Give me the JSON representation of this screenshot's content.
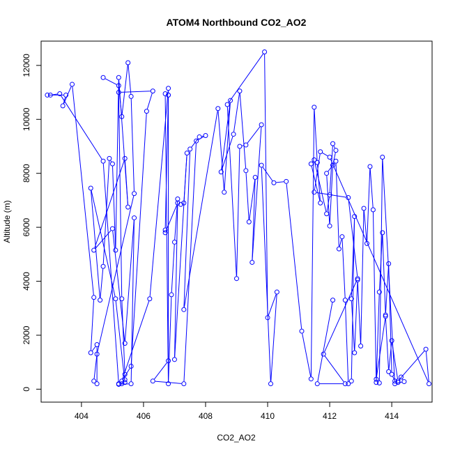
{
  "chart_data": {
    "type": "line",
    "title": "ATOM4 Northbound CO2_AO2",
    "xlabel": "CO2_AO2",
    "ylabel": "Altitude (m)",
    "xlim": [
      402.7,
      415.3
    ],
    "ylim": [
      -480,
      12900
    ],
    "x_ticks": [
      404,
      406,
      408,
      410,
      412,
      414
    ],
    "y_ticks": [
      0,
      2000,
      4000,
      6000,
      8000,
      10000,
      12000
    ],
    "grid": false,
    "legend": "none",
    "series_color": "#0000ff",
    "marker": "open-circle",
    "x": [
      404.7,
      405.2,
      405.3,
      405.5,
      405.6,
      405.7,
      404.5,
      404.4,
      404.5,
      404.5,
      404.3,
      404.4,
      403.7,
      403.4,
      403.5,
      402.9,
      403.0,
      403.3,
      404.7,
      405.2,
      405.4,
      405.1,
      404.3,
      404.6,
      404.7,
      404.9,
      405.0,
      405.1,
      405.2,
      405.5,
      405.4,
      404.4,
      405.0,
      405.4,
      405.7,
      405.6,
      405.2,
      405.3,
      405.4,
      405.4,
      405.3,
      405.2,
      406.3,
      406.1,
      405.6,
      405.3,
      406.2,
      406.8,
      406.8,
      406.7,
      406.8,
      406.9,
      407.0,
      407.1,
      407.2,
      407.3,
      407.4,
      407.0,
      407.1,
      406.7,
      406.7,
      406.8,
      406.8,
      406.3,
      407.3,
      407.7,
      408.0,
      407.8,
      407.5,
      407.3,
      408.4,
      408.6,
      408.8,
      408.5,
      408.9,
      409.1,
      409.3,
      409.4,
      409.6,
      409.5,
      409.8,
      409.3,
      409.1,
      409.0,
      408.7,
      409.9,
      410.0,
      410.3,
      410.1,
      409.8,
      410.2,
      410.6,
      411.1,
      411.4,
      411.5,
      411.6,
      411.7,
      411.4,
      411.5,
      411.9,
      412.0,
      412.1,
      412.2,
      412.1,
      412.0,
      411.9,
      412.2,
      412.3,
      412.4,
      412.5,
      412.6,
      412.7,
      412.8,
      412.7,
      412.8,
      412.9,
      413.0,
      413.1,
      413.2,
      413.3,
      413.4,
      413.5,
      413.6,
      413.7,
      413.8,
      413.9,
      414.0,
      414.1,
      414.2,
      414.3,
      414.4,
      414.1,
      413.7,
      413.6,
      413.5,
      413.8,
      413.9,
      414.0,
      414.2,
      415.1,
      415.2,
      412.0,
      411.7,
      411.5,
      412.6,
      412.9,
      411.8,
      412.5,
      411.6,
      412.1
    ],
    "y": [
      11550,
      11250,
      10100,
      12100,
      10850,
      7250,
      1300,
      300,
      200,
      1650,
      1350,
      3400,
      11300,
      10500,
      10900,
      10900,
      10900,
      10950,
      8450,
      200,
      250,
      3350,
      7450,
      3300,
      4550,
      8550,
      8350,
      5150,
      11550,
      6750,
      8550,
      5150,
      5950,
      1700,
      6350,
      200,
      180,
      200,
      350,
      550,
      3350,
      11000,
      11050,
      10300,
      850,
      300,
      3350,
      11150,
      10900,
      10950,
      200,
      3500,
      5450,
      7050,
      6850,
      6900,
      8750,
      1100,
      6900,
      5800,
      5900,
      10900,
      1050,
      300,
      200,
      9200,
      9400,
      9350,
      8900,
      2950,
      10400,
      7300,
      10700,
      8050,
      9450,
      11050,
      8100,
      6200,
      7850,
      4700,
      9800,
      9050,
      9000,
      4100,
      10550,
      12500,
      2650,
      3600,
      200,
      8300,
      7650,
      7700,
      2150,
      380,
      10450,
      8400,
      6900,
      8350,
      8500,
      6500,
      7200,
      9100,
      8850,
      8300,
      6050,
      8000,
      8450,
      5200,
      5650,
      3300,
      200,
      300,
      6400,
      3350,
      1350,
      4050,
      1600,
      6700,
      5400,
      8250,
      6650,
      250,
      3600,
      5800,
      2750,
      4650,
      550,
      300,
      250,
      450,
      280,
      200,
      8600,
      230,
      370,
      2700,
      650,
      1800,
      300,
      1480,
      200,
      8600,
      8800,
      7300,
      7100,
      4100,
      1300,
      200,
      200,
      3300
    ]
  }
}
